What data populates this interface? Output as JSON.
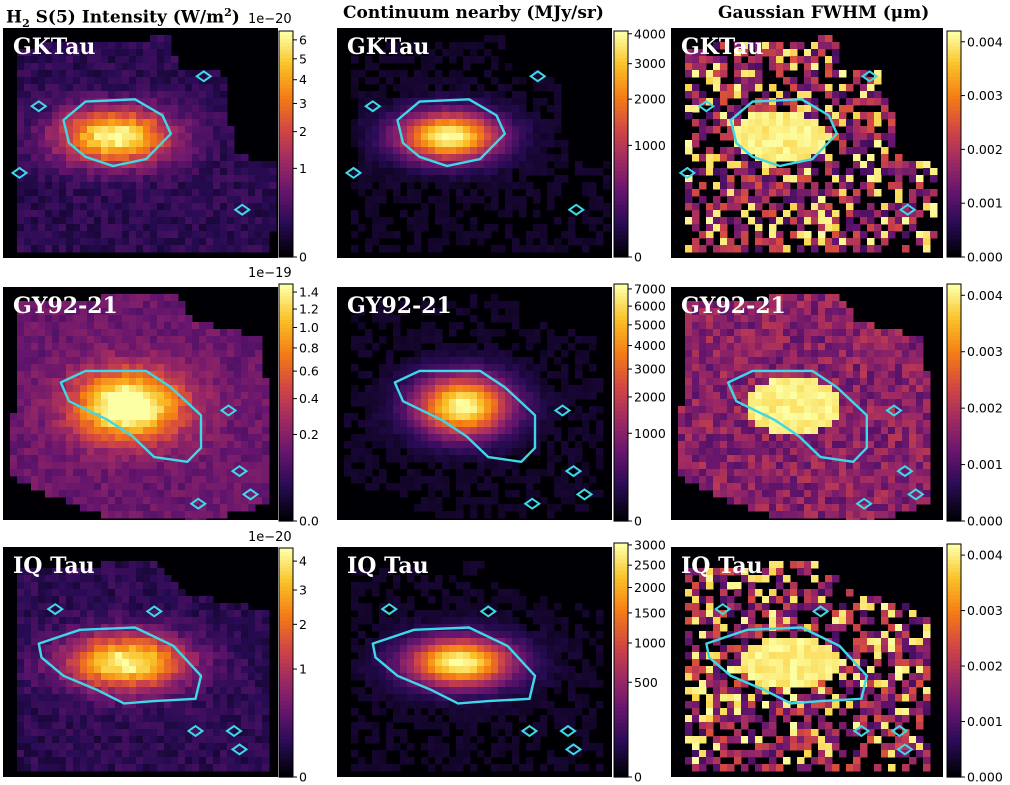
{
  "titles": {
    "col1": {
      "prefix": "H",
      "sub": "2",
      "mid": " S(5) Intensity (W/m",
      "sup": "2",
      "suffix": ")"
    },
    "col2": "Continuum nearby (MJy/sr)",
    "col3": "Gaussian FWHM (μm)"
  },
  "rows": [
    {
      "target": "GKTau",
      "exponent": "1e−20"
    },
    {
      "target": "GY92-21",
      "exponent": "1e−19"
    },
    {
      "target": "IQ Tau",
      "exponent": "1e−20"
    }
  ],
  "colors": {
    "contour": "#3fd8e6",
    "background": "#000004"
  },
  "chart_data": [
    {
      "type": "heatmap",
      "row": 0,
      "col": 0,
      "title": "GKTau",
      "colormap": "inferno",
      "scale": "sqrt",
      "cbar": {
        "exponent": "1e−20",
        "vmax": 6.5,
        "ticks": [
          {
            "v": 0,
            "label": "0"
          },
          {
            "v": 1,
            "label": "1"
          },
          {
            "v": 2,
            "label": "2"
          },
          {
            "v": 3,
            "label": "3"
          },
          {
            "v": 4,
            "label": "4"
          },
          {
            "v": 5,
            "label": "5"
          },
          {
            "v": 6,
            "label": "6"
          }
        ]
      }
    },
    {
      "type": "heatmap",
      "row": 0,
      "col": 1,
      "title": "GKTau",
      "colormap": "inferno",
      "scale": "sqrt",
      "cbar": {
        "vmax": 4100,
        "ticks": [
          {
            "v": 0,
            "label": "0"
          },
          {
            "v": 1000,
            "label": "1000"
          },
          {
            "v": 2000,
            "label": "2000"
          },
          {
            "v": 3000,
            "label": "3000"
          },
          {
            "v": 4000,
            "label": "4000"
          }
        ]
      }
    },
    {
      "type": "heatmap",
      "row": 0,
      "col": 2,
      "title": "GKTau",
      "colormap": "inferno",
      "scale": "linear",
      "cbar": {
        "vmax": 0.0042,
        "ticks": [
          {
            "v": 0,
            "label": "0.000"
          },
          {
            "v": 0.001,
            "label": "0.001"
          },
          {
            "v": 0.002,
            "label": "0.002"
          },
          {
            "v": 0.003,
            "label": "0.003"
          },
          {
            "v": 0.004,
            "label": "0.004"
          }
        ]
      }
    },
    {
      "type": "heatmap",
      "row": 1,
      "col": 0,
      "title": "GY92-21",
      "colormap": "inferno",
      "scale": "sqrt",
      "cbar": {
        "exponent": "1e−19",
        "vmax": 1.5,
        "ticks": [
          {
            "v": 0,
            "label": "0.0"
          },
          {
            "v": 0.2,
            "label": "0.2"
          },
          {
            "v": 0.4,
            "label": "0.4"
          },
          {
            "v": 0.6,
            "label": "0.6"
          },
          {
            "v": 0.8,
            "label": "0.8"
          },
          {
            "v": 1.0,
            "label": "1.0"
          },
          {
            "v": 1.2,
            "label": "1.2"
          },
          {
            "v": 1.4,
            "label": "1.4"
          }
        ]
      }
    },
    {
      "type": "heatmap",
      "row": 1,
      "col": 1,
      "title": "GY92-21",
      "colormap": "inferno",
      "scale": "sqrt",
      "cbar": {
        "vmax": 7300,
        "ticks": [
          {
            "v": 0,
            "label": "0"
          },
          {
            "v": 1000,
            "label": "1000"
          },
          {
            "v": 2000,
            "label": "2000"
          },
          {
            "v": 3000,
            "label": "3000"
          },
          {
            "v": 4000,
            "label": "4000"
          },
          {
            "v": 5000,
            "label": "5000"
          },
          {
            "v": 6000,
            "label": "6000"
          },
          {
            "v": 7000,
            "label": "7000"
          }
        ]
      }
    },
    {
      "type": "heatmap",
      "row": 1,
      "col": 2,
      "title": "GY92-21",
      "colormap": "inferno",
      "scale": "linear",
      "cbar": {
        "vmax": 0.0042,
        "ticks": [
          {
            "v": 0,
            "label": "0.000"
          },
          {
            "v": 0.001,
            "label": "0.001"
          },
          {
            "v": 0.002,
            "label": "0.002"
          },
          {
            "v": 0.003,
            "label": "0.003"
          },
          {
            "v": 0.004,
            "label": "0.004"
          }
        ]
      }
    },
    {
      "type": "heatmap",
      "row": 2,
      "col": 0,
      "title": "IQ Tau",
      "colormap": "inferno",
      "scale": "sqrt",
      "cbar": {
        "exponent": "1e−20",
        "vmax": 4.5,
        "ticks": [
          {
            "v": 0,
            "label": "0"
          },
          {
            "v": 1,
            "label": "1"
          },
          {
            "v": 2,
            "label": "2"
          },
          {
            "v": 3,
            "label": "3"
          },
          {
            "v": 4,
            "label": "4"
          }
        ]
      }
    },
    {
      "type": "heatmap",
      "row": 2,
      "col": 1,
      "title": "IQ Tau",
      "colormap": "inferno",
      "scale": "sqrt",
      "cbar": {
        "vmax": 3050,
        "ticks": [
          {
            "v": 0,
            "label": "0"
          },
          {
            "v": 500,
            "label": "500"
          },
          {
            "v": 1000,
            "label": "1000"
          },
          {
            "v": 1500,
            "label": "1500"
          },
          {
            "v": 2000,
            "label": "2000"
          },
          {
            "v": 2500,
            "label": "2500"
          },
          {
            "v": 3000,
            "label": "3000"
          }
        ]
      }
    },
    {
      "type": "heatmap",
      "row": 2,
      "col": 2,
      "title": "IQ Tau",
      "colormap": "inferno",
      "scale": "linear",
      "cbar": {
        "vmax": 0.0042,
        "ticks": [
          {
            "v": 0,
            "label": "0.000"
          },
          {
            "v": 0.001,
            "label": "0.001"
          },
          {
            "v": 0.002,
            "label": "0.002"
          },
          {
            "v": 0.003,
            "label": "0.003"
          },
          {
            "v": 0.004,
            "label": "0.004"
          }
        ]
      }
    }
  ]
}
